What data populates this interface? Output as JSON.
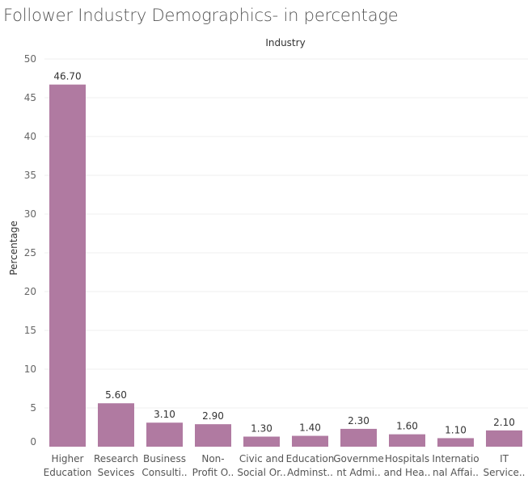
{
  "chart_data": {
    "type": "bar",
    "title": "Follower Industry Demographics- in percentage",
    "column_header": "Industry",
    "xlabel": "",
    "ylabel": "Percentage",
    "ylim": [
      0,
      50
    ],
    "yticks": [
      0,
      5,
      10,
      15,
      20,
      25,
      30,
      35,
      40,
      45,
      50
    ],
    "bar_color": "#b07aa1",
    "grid": true,
    "categories": [
      [
        "Higher",
        "Education"
      ],
      [
        "Research",
        "Sevices"
      ],
      [
        "Business",
        "Consulti.."
      ],
      [
        "Non-",
        "Profit O.."
      ],
      [
        "Civic and",
        "Social Or.."
      ],
      [
        "Education",
        "Adminst.."
      ],
      [
        "Governme",
        "nt Admi.."
      ],
      [
        "Hospitals",
        "and Hea.."
      ],
      [
        "Internatio",
        "nal Affai.."
      ],
      [
        "IT",
        "Service.."
      ]
    ],
    "values": [
      46.7,
      5.6,
      3.1,
      2.9,
      1.3,
      1.4,
      2.3,
      1.6,
      1.1,
      2.1
    ],
    "value_labels": [
      "46.70",
      "5.60",
      "3.10",
      "2.90",
      "1.30",
      "1.40",
      "2.30",
      "1.60",
      "1.10",
      "2.10"
    ]
  }
}
